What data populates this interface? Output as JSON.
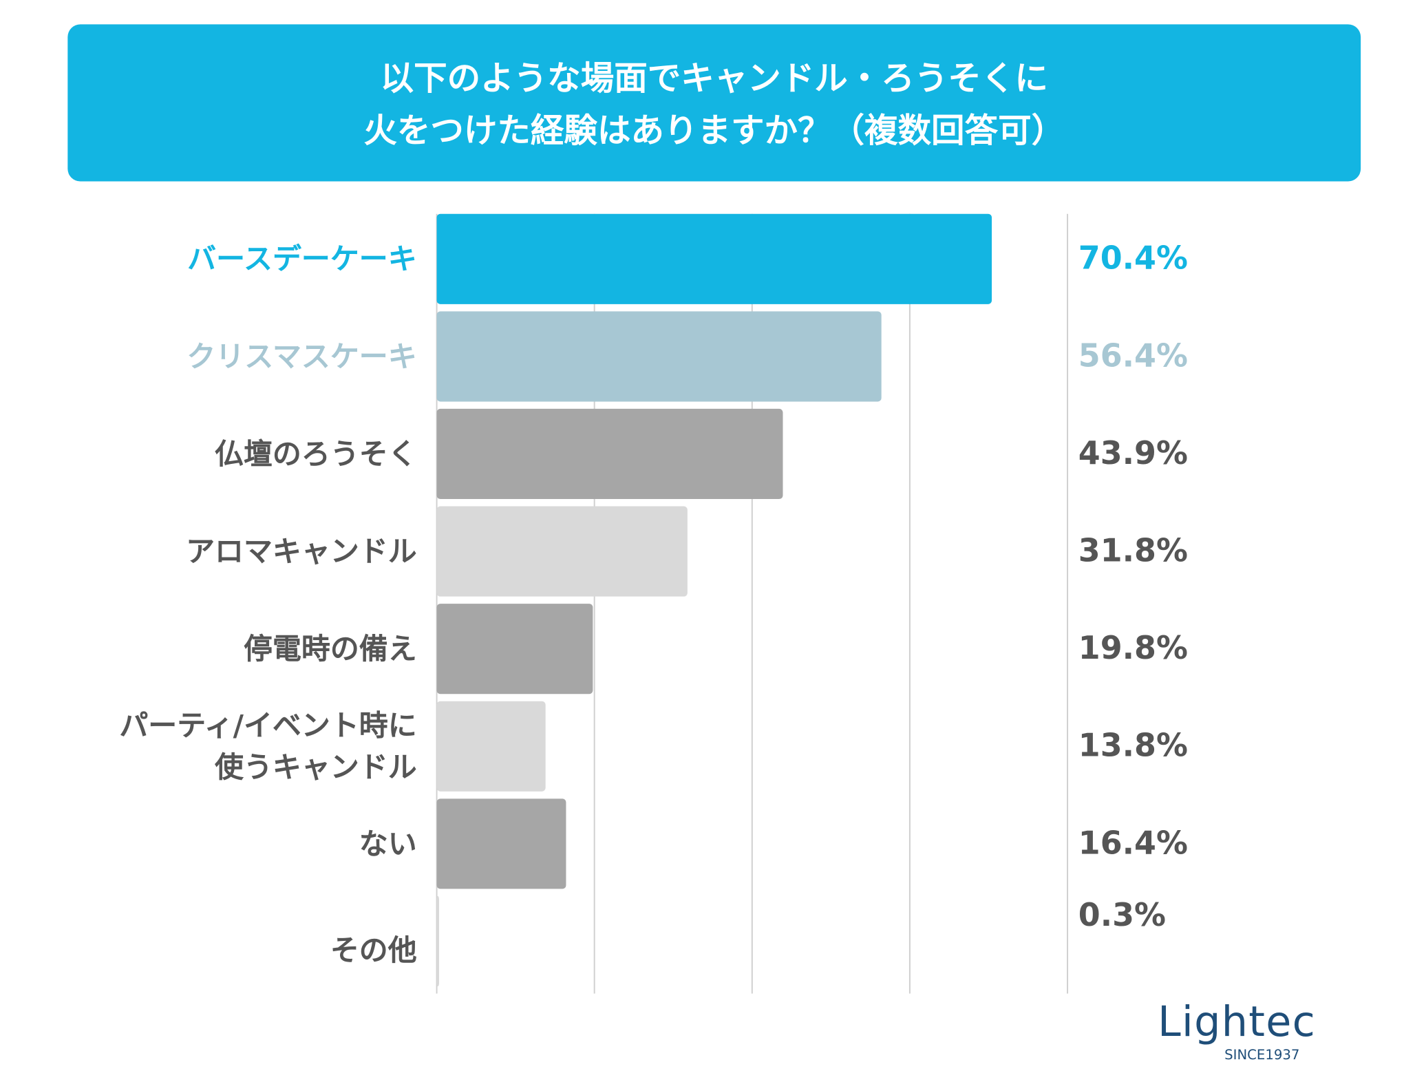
{
  "chart_data": {
    "type": "bar",
    "orientation": "horizontal",
    "title": "以下のような場面でキャンドル・ろうそくに\n火をつけた経験はありますか？（複数回答可）",
    "categories": [
      "バースデーケーキ",
      "クリスマスケーキ",
      "仏壇のろうそく",
      "アロマキャンドル",
      "停電時の備え",
      "パーティ/イベント時に\n使うキャンドル",
      "ない",
      "その他"
    ],
    "values": [
      70.4,
      56.4,
      43.9,
      31.8,
      19.8,
      13.8,
      16.4,
      0.3
    ],
    "value_labels": [
      "70.4%",
      "56.4%",
      "43.9%",
      "31.8%",
      "19.8%",
      "13.8%",
      "16.4%",
      "0.3%"
    ],
    "colors": [
      "#13b5e2",
      "#a7c7d3",
      "#a6a6a6",
      "#d9d9d9",
      "#a6a6a6",
      "#d9d9d9",
      "#a6a6a6",
      "#d9d9d9"
    ],
    "label_colors": [
      "#13b5e2",
      "#a7c7d3",
      "#555555",
      "#555555",
      "#555555",
      "#555555",
      "#555555",
      "#555555"
    ],
    "xlim": [
      0,
      80
    ],
    "xticks": [
      0,
      20,
      40,
      60,
      80
    ],
    "grid": true,
    "logo": {
      "name": "Lightec",
      "since": "SINCE1937"
    }
  }
}
